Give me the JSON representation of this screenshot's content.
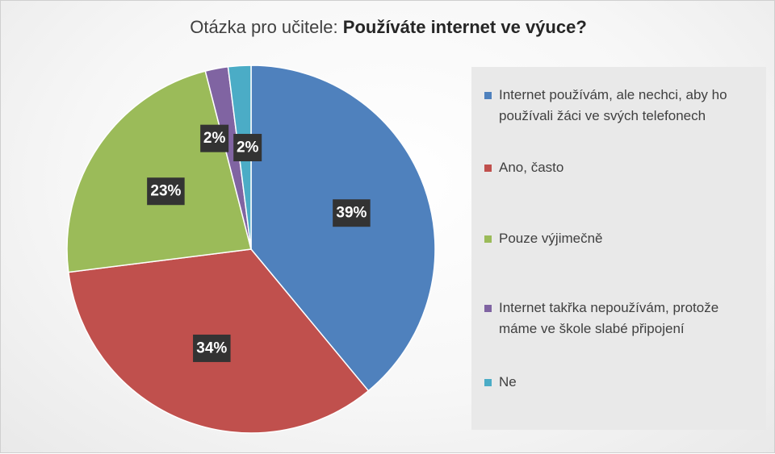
{
  "title_prefix": "Otázka pro učitele: ",
  "title_bold": "Používáte internet ve výuce?",
  "chart_data": {
    "type": "pie",
    "title": "Otázka pro učitele: Používáte internet ve výuce?",
    "categories": [
      "Internet používám, ale nechci, aby ho používali žáci ve svých telefonech",
      "Ano, často",
      "Pouze výjimečně",
      "Internet takřka nepoužívám, protože máme ve škole slabé připojení",
      "Ne"
    ],
    "values": [
      39,
      34,
      23,
      2,
      2
    ],
    "labels": [
      "39%",
      "34%",
      "23%",
      "2%",
      "2%"
    ],
    "colors": [
      "#4f81bd",
      "#c0504d",
      "#9bbb59",
      "#8064a2",
      "#4bacc6"
    ],
    "legend_position": "right"
  }
}
